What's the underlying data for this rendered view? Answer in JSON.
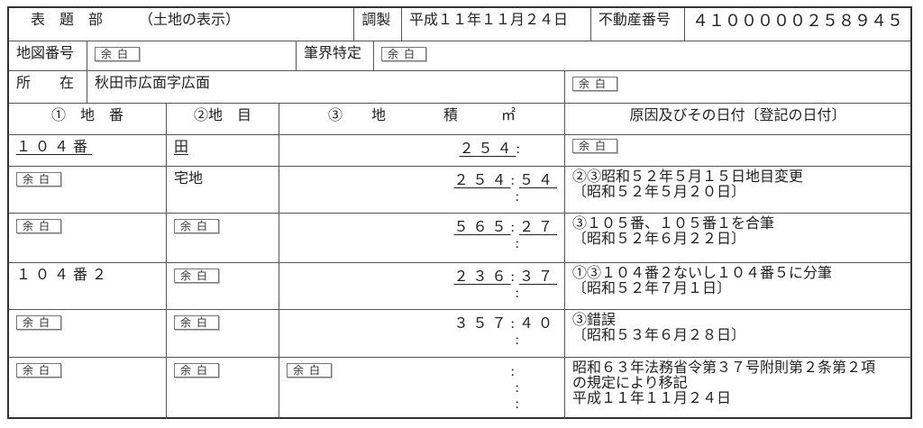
{
  "header": {
    "title": "表　題　部",
    "subtitle": "（土地の表示）",
    "chosei_label": "調製",
    "chosei_date": "平成１１年１１月２４日",
    "fudosan_label": "不動産番号",
    "fudosan_number": "４１０００００２５８９４５"
  },
  "map": {
    "label": "地図番号",
    "value": "余白",
    "hikkai_label": "筆界特定",
    "hikkai_value": "余白"
  },
  "location": {
    "label": "所　　在",
    "value": "秋田市広面字広面",
    "note": "余白"
  },
  "columns": [
    "①　地　番",
    "②地　目",
    "③　　地　　　　積　　　㎡",
    "原因及びその日付〔登記の日付〕"
  ],
  "rows": [
    {
      "chiban": "１０４番",
      "chimoku": "田",
      "chiseki": "",
      "area_int": "２５４",
      "area_dec": "",
      "cause": [
        "余白"
      ]
    },
    {
      "chiban": "余白",
      "chimoku": "宅地",
      "chiseki": "",
      "area_int": "２５４",
      "area_dec": "５４",
      "cause": [
        "②③昭和５２年５月１５日地目変更",
        "〔昭和５２年５月２０日〕"
      ]
    },
    {
      "chiban": "余白",
      "chimoku": "余白",
      "chiseki": "",
      "area_int": "５６５",
      "area_dec": "２７",
      "cause": [
        "③１０５番、１０５番１を合筆",
        "〔昭和５２年６月２２日〕"
      ]
    },
    {
      "chiban": "１０４番２",
      "chimoku": "余白",
      "chiseki": "",
      "area_int": "２３６",
      "area_dec": "３７",
      "cause": [
        "①③１０４番２ないし１０４番５に分筆",
        "〔昭和５２年７月１日〕"
      ]
    },
    {
      "chiban": "余白",
      "chimoku": "余白",
      "chiseki": "",
      "area_int": "３５７",
      "area_dec": "４０",
      "cause": [
        "③錯誤",
        "〔昭和５３年６月２８日〕"
      ]
    },
    {
      "chiban": "余白",
      "chimoku": "余白",
      "chiseki": "余白",
      "area_int": "",
      "area_dec": "",
      "cause": [
        "昭和６３年法務省令第３７号附則第２条第２項",
        "の規定により移記",
        "平成１１年１１月２４日"
      ]
    }
  ],
  "colon": ":"
}
